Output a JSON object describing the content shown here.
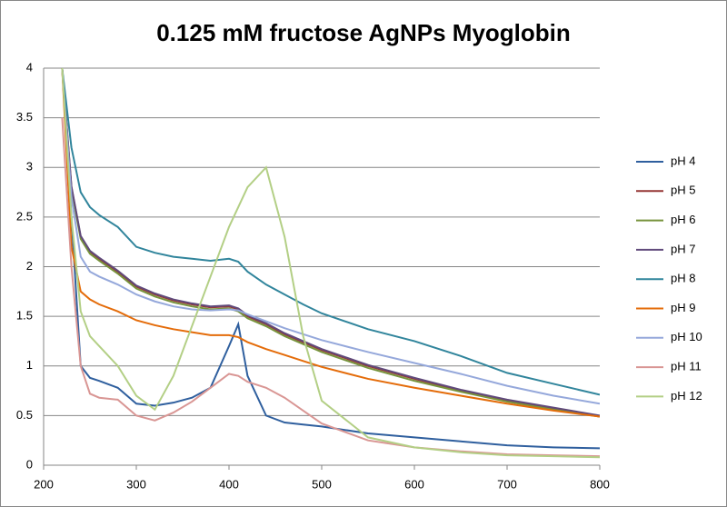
{
  "chart_data": {
    "type": "line",
    "title": "0.125 mM fructose AgNPs Myoglobin",
    "x": [
      220,
      230,
      240,
      250,
      260,
      280,
      300,
      320,
      340,
      360,
      380,
      400,
      410,
      420,
      440,
      460,
      480,
      500,
      550,
      600,
      650,
      700,
      750,
      800
    ],
    "series": [
      {
        "name": "pH 4",
        "color": "#2f5f9e",
        "values": [
          4,
          2.5,
          1.0,
          0.88,
          0.85,
          0.78,
          0.62,
          0.6,
          0.63,
          0.68,
          0.78,
          1.2,
          1.42,
          0.9,
          0.5,
          0.43,
          0.41,
          0.39,
          0.32,
          0.28,
          0.24,
          0.2,
          0.18,
          0.17
        ]
      },
      {
        "name": "pH 5",
        "color": "#953735",
        "values": [
          4,
          2.8,
          2.3,
          2.15,
          2.08,
          1.95,
          1.8,
          1.72,
          1.66,
          1.62,
          1.59,
          1.6,
          1.57,
          1.5,
          1.42,
          1.32,
          1.24,
          1.16,
          1.0,
          0.87,
          0.75,
          0.65,
          0.57,
          0.49
        ]
      },
      {
        "name": "pH 6",
        "color": "#77933c",
        "values": [
          4,
          2.78,
          2.28,
          2.13,
          2.06,
          1.93,
          1.78,
          1.7,
          1.64,
          1.6,
          1.57,
          1.58,
          1.55,
          1.48,
          1.4,
          1.3,
          1.22,
          1.14,
          0.98,
          0.85,
          0.74,
          0.64,
          0.56,
          0.49
        ]
      },
      {
        "name": "pH 7",
        "color": "#604a7b",
        "values": [
          4,
          2.81,
          2.31,
          2.16,
          2.09,
          1.96,
          1.81,
          1.73,
          1.67,
          1.63,
          1.6,
          1.61,
          1.58,
          1.51,
          1.43,
          1.33,
          1.25,
          1.17,
          1.01,
          0.88,
          0.76,
          0.66,
          0.58,
          0.5
        ]
      },
      {
        "name": "pH 8",
        "color": "#31859c",
        "values": [
          4,
          3.2,
          2.75,
          2.6,
          2.52,
          2.4,
          2.2,
          2.14,
          2.1,
          2.08,
          2.06,
          2.08,
          2.05,
          1.95,
          1.82,
          1.72,
          1.62,
          1.53,
          1.37,
          1.25,
          1.1,
          0.93,
          0.82,
          0.71
        ]
      },
      {
        "name": "pH 9",
        "color": "#e46c0a",
        "values": [
          4,
          2.2,
          1.75,
          1.67,
          1.62,
          1.55,
          1.46,
          1.41,
          1.37,
          1.34,
          1.31,
          1.31,
          1.29,
          1.24,
          1.17,
          1.11,
          1.05,
          0.99,
          0.87,
          0.78,
          0.7,
          0.62,
          0.55,
          0.49
        ]
      },
      {
        "name": "pH 10",
        "color": "#95a8db",
        "values": [
          4,
          2.7,
          2.1,
          1.95,
          1.9,
          1.82,
          1.72,
          1.65,
          1.6,
          1.57,
          1.56,
          1.57,
          1.56,
          1.52,
          1.45,
          1.38,
          1.32,
          1.26,
          1.14,
          1.03,
          0.92,
          0.8,
          0.7,
          0.62
        ]
      },
      {
        "name": "pH 11",
        "color": "#d99694",
        "values": [
          3.5,
          2.0,
          1.0,
          0.72,
          0.68,
          0.66,
          0.5,
          0.45,
          0.53,
          0.64,
          0.78,
          0.92,
          0.9,
          0.84,
          0.78,
          0.68,
          0.55,
          0.42,
          0.25,
          0.18,
          0.14,
          0.11,
          0.1,
          0.09
        ]
      },
      {
        "name": "pH 12",
        "color": "#b3cf85",
        "values": [
          4,
          2.5,
          1.55,
          1.3,
          1.2,
          1.0,
          0.7,
          0.56,
          0.9,
          1.4,
          1.9,
          2.4,
          2.6,
          2.8,
          3.0,
          2.3,
          1.3,
          0.65,
          0.28,
          0.18,
          0.13,
          0.1,
          0.09,
          0.08
        ]
      }
    ],
    "xlim": [
      200,
      800
    ],
    "xticks": [
      200,
      300,
      400,
      500,
      600,
      700,
      800
    ],
    "ylim": [
      0,
      4
    ],
    "yticks": [
      0,
      0.5,
      1,
      1.5,
      2,
      2.5,
      3,
      3.5,
      4
    ],
    "grid": true,
    "legend": "right"
  }
}
